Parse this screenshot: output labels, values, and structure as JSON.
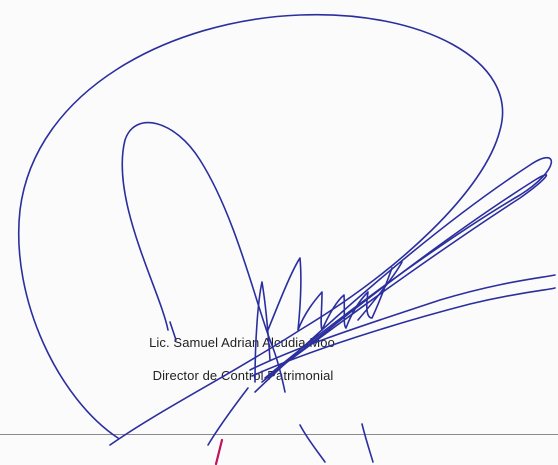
{
  "signature_block": {
    "name": "Lic. Samuel Adrian Alcudia Moo",
    "title": "Director de Control Patrimonial"
  },
  "ink_colors": {
    "signature": "#2b2f9e",
    "mark": "#c0145c"
  }
}
